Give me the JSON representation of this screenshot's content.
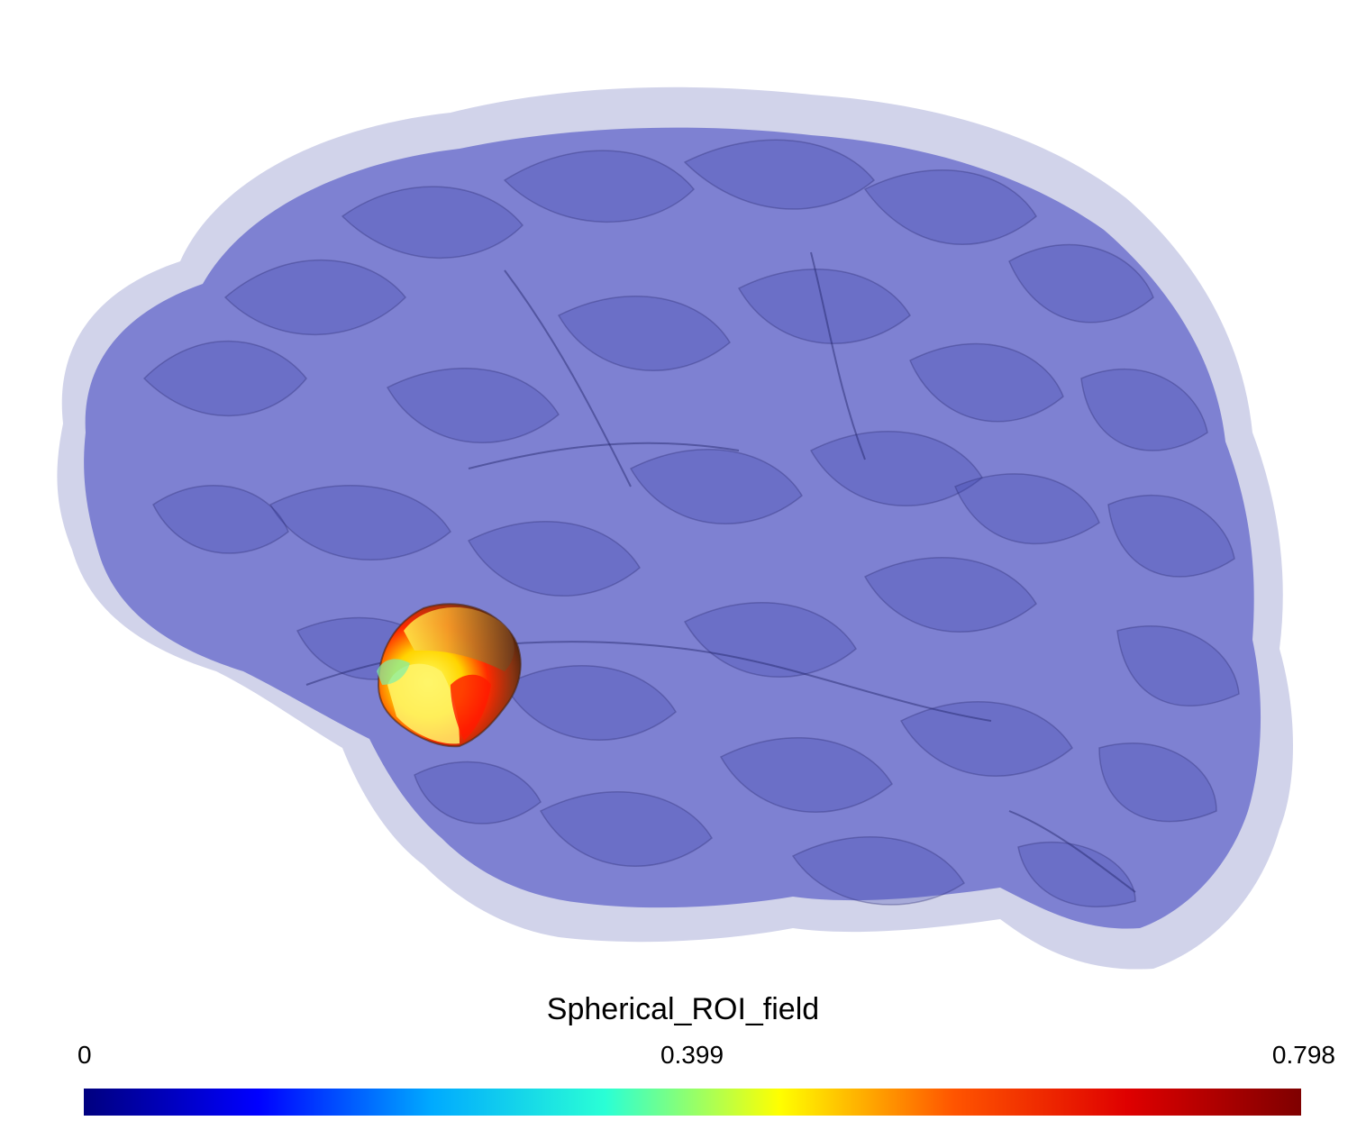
{
  "colorbar": {
    "title": "Spherical_ROI_field",
    "min_label": "0",
    "mid_label": "0.399",
    "max_label": "0.798",
    "colormap": "jet",
    "stops": [
      "#00007f",
      "#0000ff",
      "#00aaff",
      "#2affd5",
      "#ffff00",
      "#ff5500",
      "#df0000",
      "#7f0000"
    ]
  },
  "scene": {
    "background": "#ffffff",
    "surface_color": "#5d61c4",
    "surface_opacity": "translucent",
    "roi_colors": [
      "#ffff00",
      "#ff0000",
      "#7f3b12",
      "#5ff0a0"
    ]
  }
}
